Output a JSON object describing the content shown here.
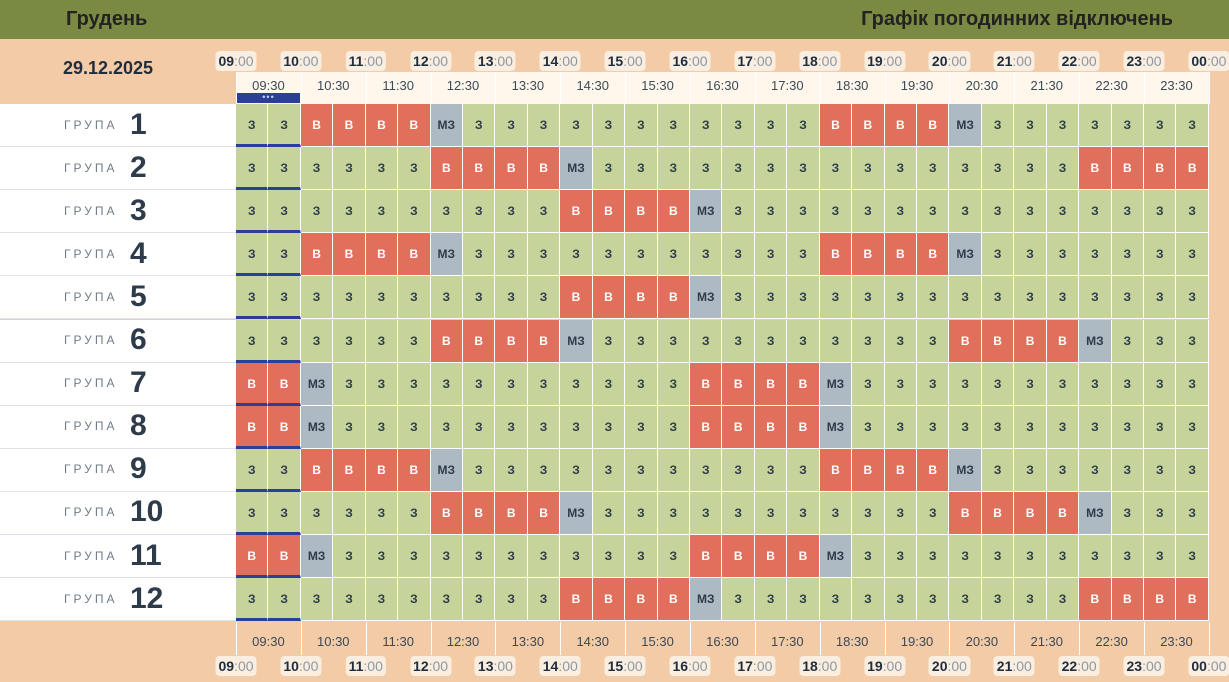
{
  "header": {
    "month": "Грудень",
    "title": "Графік погодинних відключень"
  },
  "date": "29.12.2025",
  "hours": [
    {
      "h": "09",
      "m": ":00"
    },
    {
      "h": "10",
      "m": ":00"
    },
    {
      "h": "11",
      "m": ":00"
    },
    {
      "h": "12",
      "m": ":00"
    },
    {
      "h": "13",
      "m": ":00"
    },
    {
      "h": "14",
      "m": ":00"
    },
    {
      "h": "15",
      "m": ":00"
    },
    {
      "h": "16",
      "m": ":00"
    },
    {
      "h": "17",
      "m": ":00"
    },
    {
      "h": "18",
      "m": ":00"
    },
    {
      "h": "19",
      "m": ":00"
    },
    {
      "h": "20",
      "m": ":00"
    },
    {
      "h": "21",
      "m": ":00"
    },
    {
      "h": "22",
      "m": ":00"
    },
    {
      "h": "23",
      "m": ":00"
    },
    {
      "h": "00",
      "m": ":00"
    }
  ],
  "half_hours": [
    "09:30",
    "10:30",
    "11:30",
    "12:30",
    "13:30",
    "14:30",
    "15:30",
    "16:30",
    "17:30",
    "18:30",
    "19:30",
    "20:30",
    "21:30",
    "22:30",
    "23:30"
  ],
  "current_marker": "•••",
  "group_word": "ГРУПА",
  "legend": {
    "z": "З",
    "v": "В",
    "mz": "МЗ"
  },
  "colors": {
    "z": "#c6d49b",
    "v": "#e06f5c",
    "mz": "#aebac3",
    "header": "#7a8a43",
    "accent": "#2b3f98"
  },
  "groups": [
    {
      "number": "1",
      "slots": [
        "z",
        "z",
        "v",
        "v",
        "v",
        "v",
        "mz",
        "z",
        "z",
        "z",
        "z",
        "z",
        "z",
        "z",
        "z",
        "z",
        "z",
        "z",
        "v",
        "v",
        "v",
        "v",
        "mz",
        "z",
        "z",
        "z",
        "z",
        "z",
        "z",
        "z"
      ]
    },
    {
      "number": "2",
      "slots": [
        "z",
        "z",
        "z",
        "z",
        "z",
        "z",
        "v",
        "v",
        "v",
        "v",
        "mz",
        "z",
        "z",
        "z",
        "z",
        "z",
        "z",
        "z",
        "z",
        "z",
        "z",
        "z",
        "z",
        "z",
        "z",
        "z",
        "v",
        "v",
        "v",
        "v"
      ]
    },
    {
      "number": "3",
      "slots": [
        "z",
        "z",
        "z",
        "z",
        "z",
        "z",
        "z",
        "z",
        "z",
        "z",
        "v",
        "v",
        "v",
        "v",
        "mz",
        "z",
        "z",
        "z",
        "z",
        "z",
        "z",
        "z",
        "z",
        "z",
        "z",
        "z",
        "z",
        "z",
        "z",
        "z"
      ]
    },
    {
      "number": "4",
      "slots": [
        "z",
        "z",
        "v",
        "v",
        "v",
        "v",
        "mz",
        "z",
        "z",
        "z",
        "z",
        "z",
        "z",
        "z",
        "z",
        "z",
        "z",
        "z",
        "v",
        "v",
        "v",
        "v",
        "mz",
        "z",
        "z",
        "z",
        "z",
        "z",
        "z",
        "z"
      ]
    },
    {
      "number": "5",
      "slots": [
        "z",
        "z",
        "z",
        "z",
        "z",
        "z",
        "z",
        "z",
        "z",
        "z",
        "v",
        "v",
        "v",
        "v",
        "mz",
        "z",
        "z",
        "z",
        "z",
        "z",
        "z",
        "z",
        "z",
        "z",
        "z",
        "z",
        "z",
        "z",
        "z",
        "z"
      ]
    },
    {
      "number": "6",
      "slots": [
        "z",
        "z",
        "z",
        "z",
        "z",
        "z",
        "v",
        "v",
        "v",
        "v",
        "mz",
        "z",
        "z",
        "z",
        "z",
        "z",
        "z",
        "z",
        "z",
        "z",
        "z",
        "z",
        "v",
        "v",
        "v",
        "v",
        "mz",
        "z",
        "z",
        "z"
      ]
    },
    {
      "number": "7",
      "slots": [
        "v",
        "v",
        "mz",
        "z",
        "z",
        "z",
        "z",
        "z",
        "z",
        "z",
        "z",
        "z",
        "z",
        "z",
        "v",
        "v",
        "v",
        "v",
        "mz",
        "z",
        "z",
        "z",
        "z",
        "z",
        "z",
        "z",
        "z",
        "z",
        "z",
        "z"
      ]
    },
    {
      "number": "8",
      "slots": [
        "v",
        "v",
        "mz",
        "z",
        "z",
        "z",
        "z",
        "z",
        "z",
        "z",
        "z",
        "z",
        "z",
        "z",
        "v",
        "v",
        "v",
        "v",
        "mz",
        "z",
        "z",
        "z",
        "z",
        "z",
        "z",
        "z",
        "z",
        "z",
        "z",
        "z"
      ]
    },
    {
      "number": "9",
      "slots": [
        "z",
        "z",
        "v",
        "v",
        "v",
        "v",
        "mz",
        "z",
        "z",
        "z",
        "z",
        "z",
        "z",
        "z",
        "z",
        "z",
        "z",
        "z",
        "v",
        "v",
        "v",
        "v",
        "mz",
        "z",
        "z",
        "z",
        "z",
        "z",
        "z",
        "z"
      ]
    },
    {
      "number": "10",
      "slots": [
        "z",
        "z",
        "z",
        "z",
        "z",
        "z",
        "v",
        "v",
        "v",
        "v",
        "mz",
        "z",
        "z",
        "z",
        "z",
        "z",
        "z",
        "z",
        "z",
        "z",
        "z",
        "z",
        "v",
        "v",
        "v",
        "v",
        "mz",
        "z",
        "z",
        "z"
      ]
    },
    {
      "number": "11",
      "slots": [
        "v",
        "v",
        "mz",
        "z",
        "z",
        "z",
        "z",
        "z",
        "z",
        "z",
        "z",
        "z",
        "z",
        "z",
        "v",
        "v",
        "v",
        "v",
        "mz",
        "z",
        "z",
        "z",
        "z",
        "z",
        "z",
        "z",
        "z",
        "z",
        "z",
        "z"
      ]
    },
    {
      "number": "12",
      "slots": [
        "z",
        "z",
        "z",
        "z",
        "z",
        "z",
        "z",
        "z",
        "z",
        "z",
        "v",
        "v",
        "v",
        "v",
        "mz",
        "z",
        "z",
        "z",
        "z",
        "z",
        "z",
        "z",
        "z",
        "z",
        "z",
        "z",
        "v",
        "v",
        "v",
        "v"
      ]
    }
  ]
}
